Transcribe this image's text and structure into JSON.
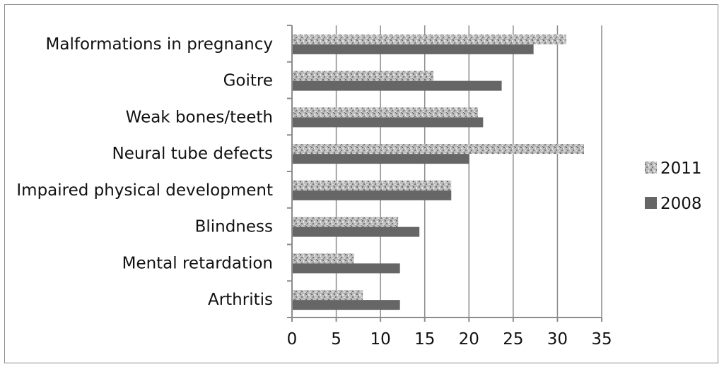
{
  "chart_data": {
    "type": "bar",
    "orientation": "horizontal",
    "title": "",
    "xlabel": "",
    "ylabel": "",
    "categories": [
      "Malformations in pregnancy",
      "Goitre",
      "Weak bones/teeth",
      "Neural tube defects",
      "Impaired physical development",
      "Blindness",
      "Mental retardation",
      "Arthritis"
    ],
    "series": [
      {
        "name": "2011",
        "values": [
          31,
          16,
          21,
          33,
          18,
          12,
          7,
          8
        ],
        "pattern": "speckled",
        "color": "#a9a9a9"
      },
      {
        "name": "2008",
        "values": [
          27.3,
          23.7,
          21.6,
          20,
          18,
          14.4,
          12.2,
          12.2
        ],
        "pattern": "solid",
        "color": "#666666"
      }
    ],
    "xlim": [
      0,
      35
    ],
    "xticks": [
      "0",
      "5",
      "10",
      "15",
      "20",
      "25",
      "30",
      "35"
    ],
    "grid": true,
    "legend_position": "right",
    "legend_order": [
      "2011",
      "2008"
    ]
  }
}
